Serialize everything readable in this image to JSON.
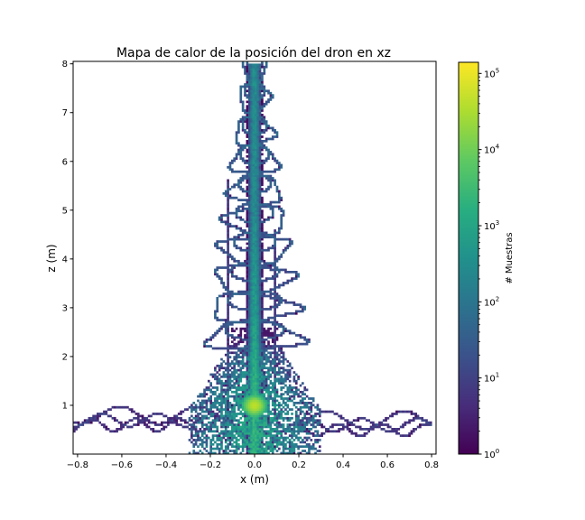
{
  "chart_data": {
    "type": "heatmap",
    "title": "Mapa de calor de la posición del dron en xz",
    "xlabel": "x (m)",
    "ylabel": "z (m)",
    "xlim": [
      -0.82,
      0.82
    ],
    "ylim": [
      0.0,
      8.05
    ],
    "x_ticks": [
      {
        "v": -0.8,
        "label": "−0.8"
      },
      {
        "v": -0.6,
        "label": "−0.6"
      },
      {
        "v": -0.4,
        "label": "−0.4"
      },
      {
        "v": -0.2,
        "label": "−0.2"
      },
      {
        "v": 0.0,
        "label": "0.0"
      },
      {
        "v": 0.2,
        "label": "0.2"
      },
      {
        "v": 0.4,
        "label": "0.4"
      },
      {
        "v": 0.6,
        "label": "0.6"
      },
      {
        "v": 0.8,
        "label": "0.8"
      }
    ],
    "y_ticks": [
      {
        "v": 1,
        "label": "1"
      },
      {
        "v": 2,
        "label": "2"
      },
      {
        "v": 3,
        "label": "3"
      },
      {
        "v": 4,
        "label": "4"
      },
      {
        "v": 5,
        "label": "5"
      },
      {
        "v": 6,
        "label": "6"
      },
      {
        "v": 7,
        "label": "7"
      },
      {
        "v": 8,
        "label": "8"
      }
    ],
    "colorbar": {
      "label": "# Muestras",
      "scale": "log",
      "range": [
        1,
        140000
      ],
      "colormap": "viridis",
      "ticks": [
        {
          "v": 1,
          "base": "10",
          "exp": "0"
        },
        {
          "v": 10,
          "base": "10",
          "exp": "1"
        },
        {
          "v": 100,
          "base": "10",
          "exp": "2"
        },
        {
          "v": 1000,
          "base": "10",
          "exp": "3"
        },
        {
          "v": 10000,
          "base": "10",
          "exp": "4"
        },
        {
          "v": 100000,
          "base": "10",
          "exp": "5"
        }
      ]
    },
    "density_features": {
      "hover_column": {
        "x": 0.0,
        "z_range": [
          0.0,
          8.0
        ],
        "width_m": 0.05,
        "peak_counts": 100000
      },
      "hot_center": {
        "x": 0.0,
        "z": 1.0,
        "counts": 140000
      },
      "base_cloud": {
        "x_range": [
          -0.3,
          0.3
        ],
        "z_range": [
          0.0,
          2.0
        ],
        "typical_counts": 1000
      },
      "spiral_loops": [
        {
          "z": 7.9,
          "x_center": 0.0,
          "radius": 0.05
        },
        {
          "z": 7.3,
          "x_center": 0.0,
          "radius": 0.07
        },
        {
          "z": 6.6,
          "x_center": 0.0,
          "radius": 0.09
        },
        {
          "z": 6.0,
          "x_center": 0.0,
          "radius": 0.11
        },
        {
          "z": 5.4,
          "x_center": 0.0,
          "radius": 0.12
        },
        {
          "z": 4.8,
          "x_center": 0.0,
          "radius": 0.14
        },
        {
          "z": 4.2,
          "x_center": 0.0,
          "radius": 0.16
        },
        {
          "z": 3.6,
          "x_center": 0.0,
          "radius": 0.18
        },
        {
          "z": 3.0,
          "x_center": 0.0,
          "radius": 0.2
        },
        {
          "z": 2.4,
          "x_center": 0.0,
          "radius": 0.22
        }
      ],
      "horizontal_excursions": [
        {
          "z": 0.8,
          "x_range": [
            -0.82,
            0.0
          ]
        },
        {
          "z": 0.7,
          "x_range": [
            0.0,
            0.8
          ]
        }
      ],
      "side_tracks": [
        {
          "x": -0.12,
          "z_range": [
            0.6,
            5.6
          ]
        },
        {
          "x": 0.09,
          "z_range": [
            0.8,
            4.6
          ]
        }
      ]
    }
  }
}
